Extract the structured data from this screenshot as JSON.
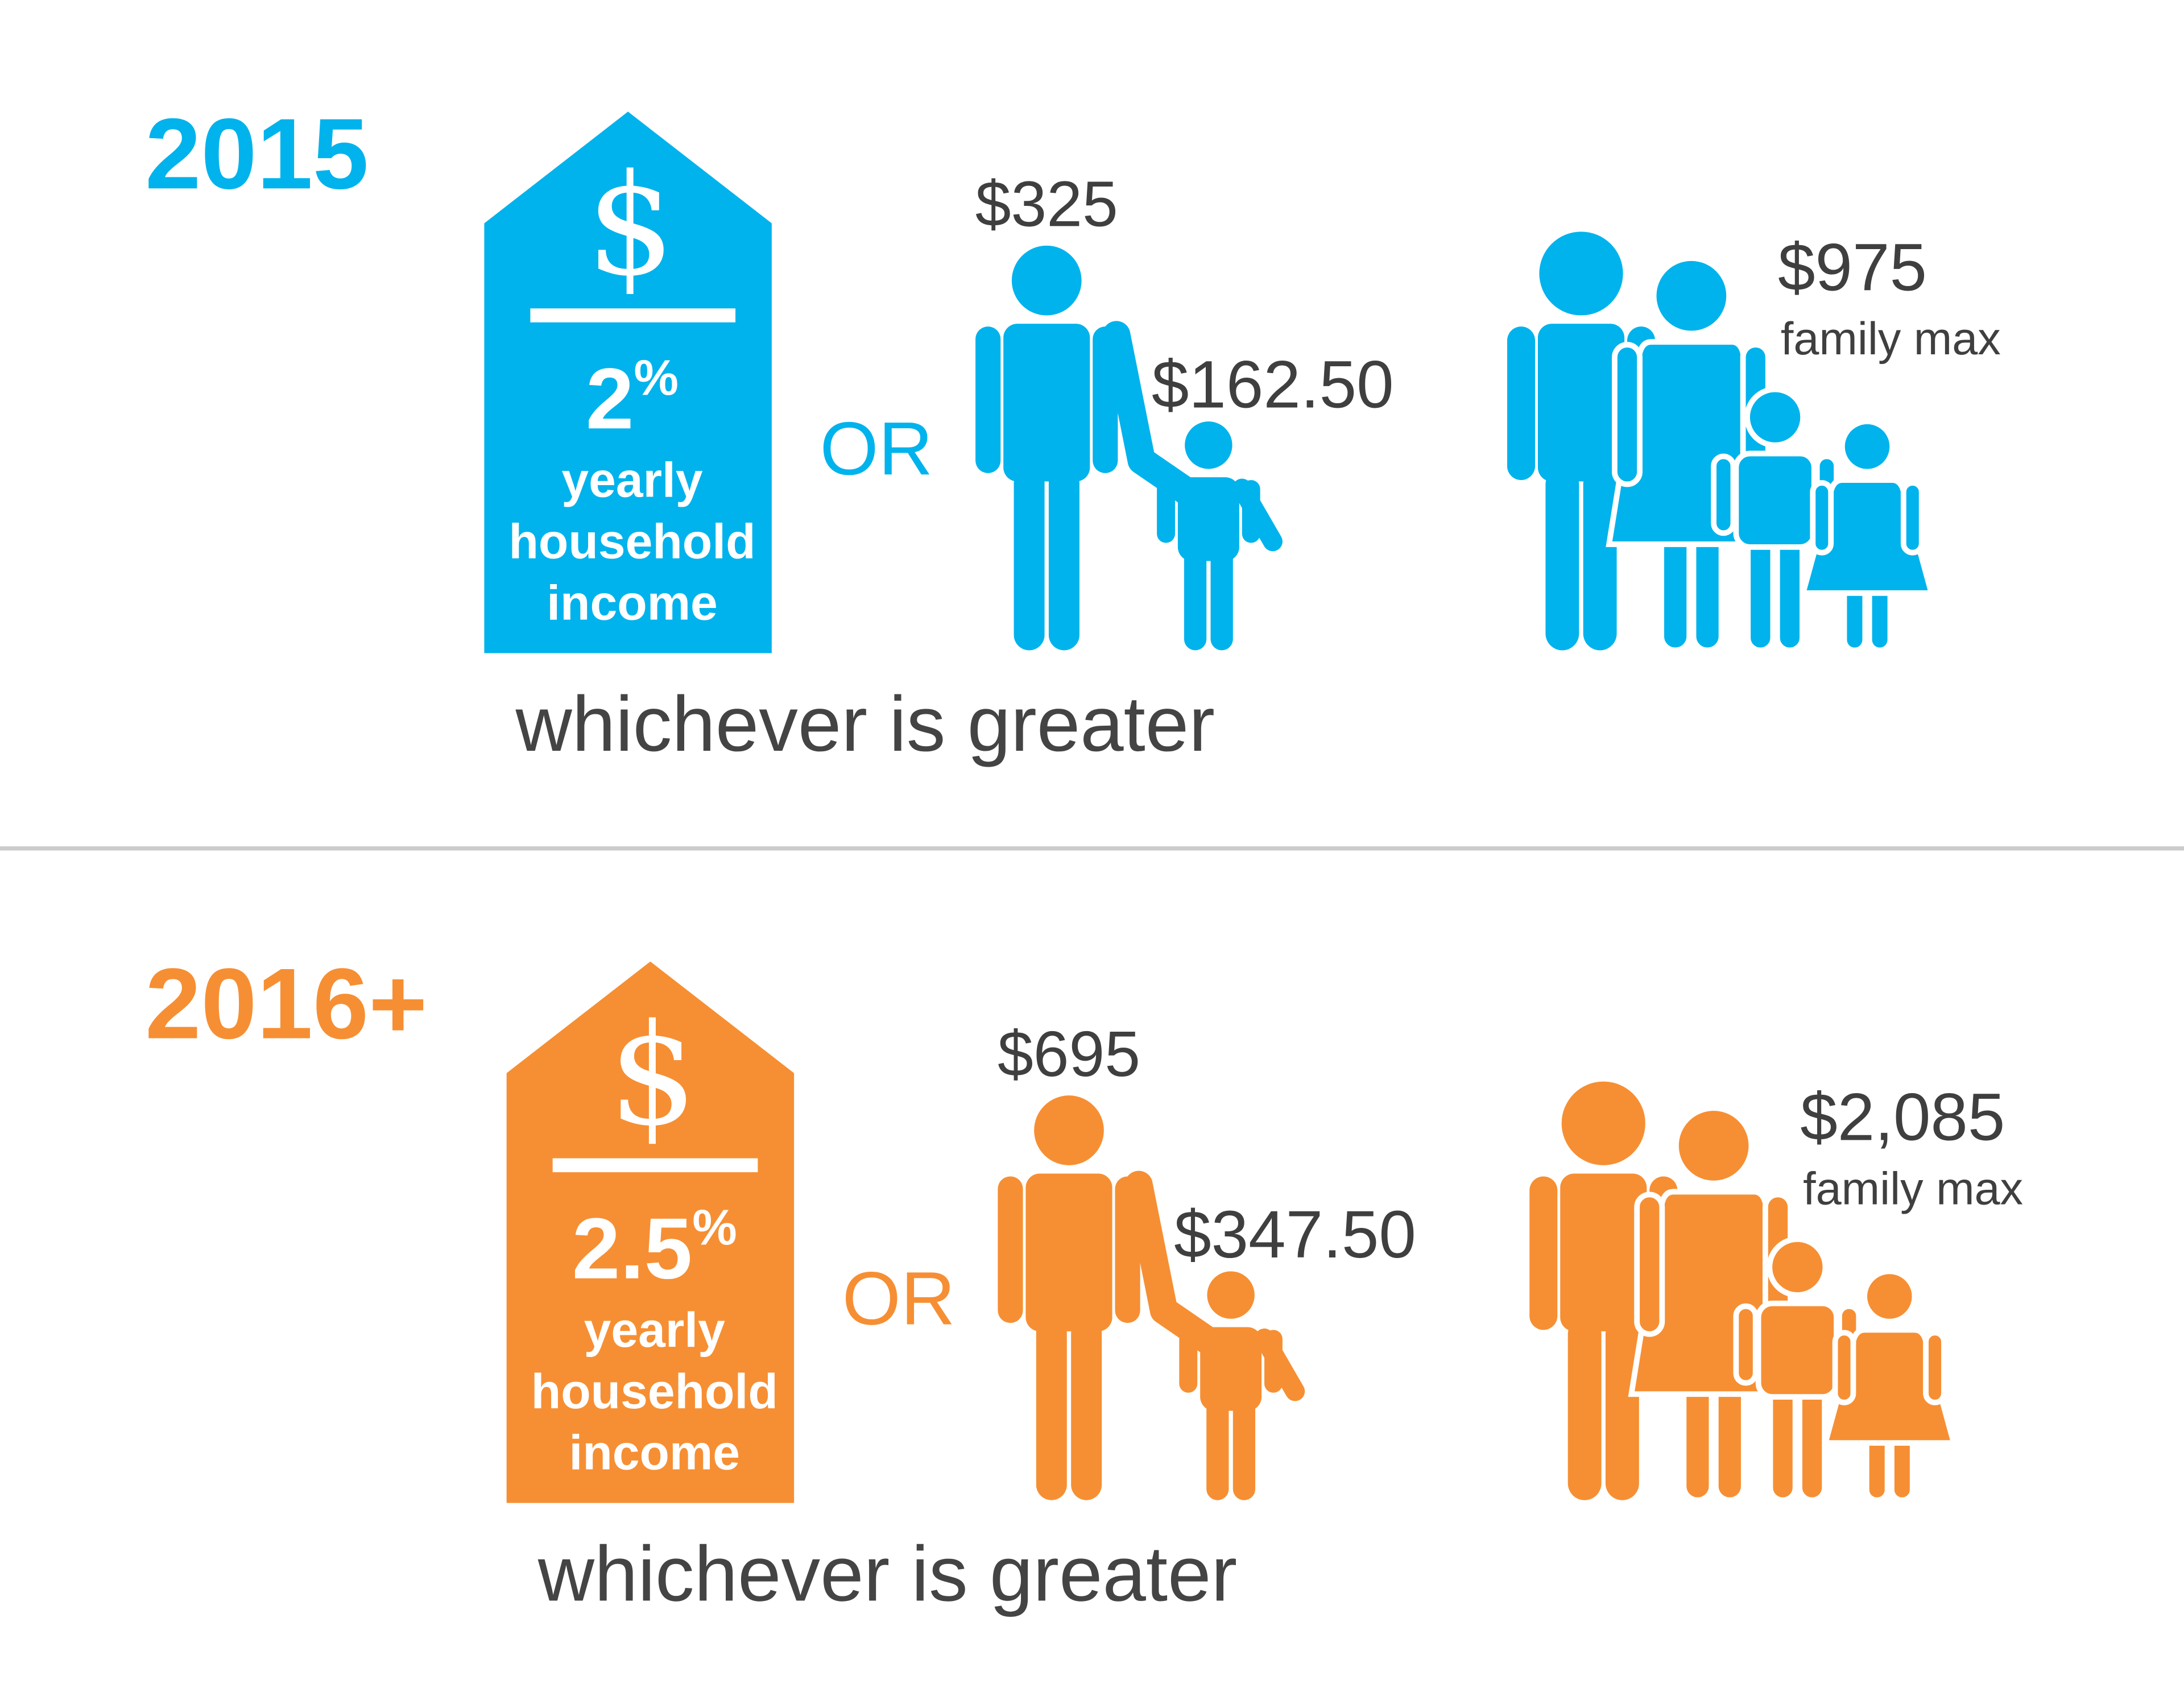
{
  "sections": [
    {
      "year": "2015",
      "color": "#00b3ec",
      "tag": {
        "symbol": "$",
        "number": "2",
        "unit": "%",
        "lines": [
          "yearly",
          "household",
          "income"
        ]
      },
      "or": "OR",
      "adult": "$325",
      "child": "$162.50",
      "family": "$975",
      "family_note": "family max",
      "footer": "whichever is greater"
    },
    {
      "year": "2016+",
      "color": "#f68f33",
      "tag": {
        "symbol": "$",
        "number": "2.5",
        "unit": "%",
        "lines": [
          "yearly",
          "household",
          "income"
        ]
      },
      "or": "OR",
      "adult": "$695",
      "child": "$347.50",
      "family": "$2,085",
      "family_note": "family max",
      "footer": "whichever is greater"
    }
  ]
}
